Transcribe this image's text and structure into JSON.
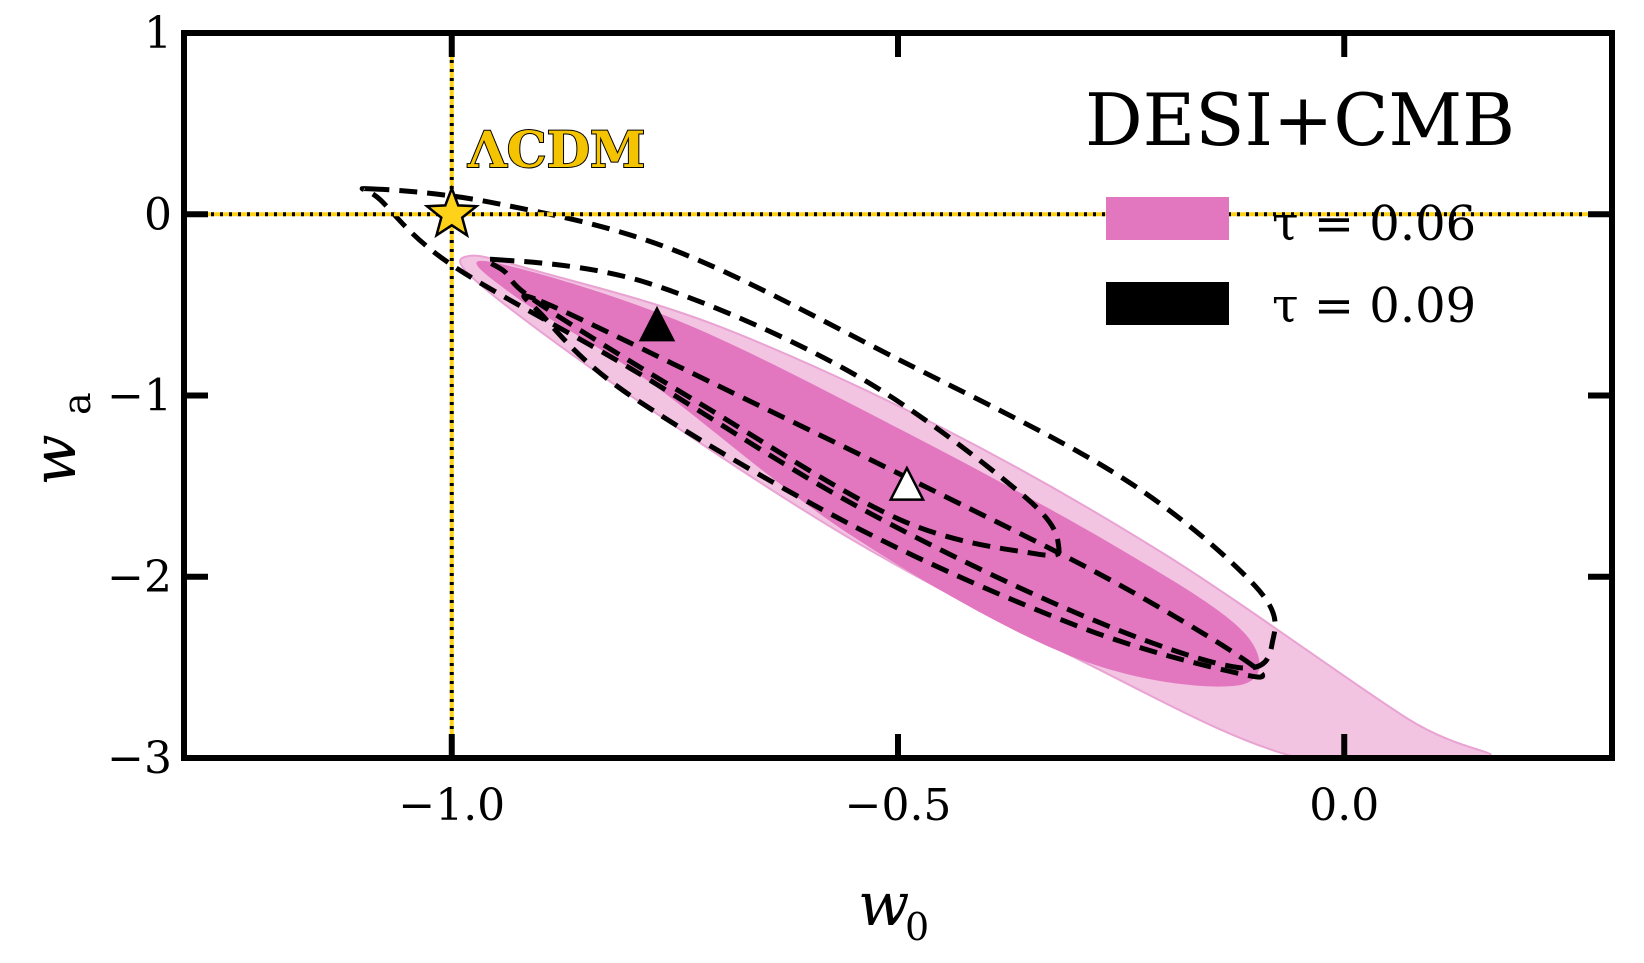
{
  "chart_data": {
    "type": "scatter",
    "title": "DESI+CMB",
    "xlabel": "w",
    "xlabel_sub": "0",
    "ylabel": "w",
    "ylabel_sub": "a",
    "xlim": [
      -1.3,
      0.3
    ],
    "ylim": [
      -3,
      1
    ],
    "xticks": [
      -1.0,
      -0.5,
      0.0
    ],
    "xtick_labels": [
      "−1.0",
      "−0.5",
      "0.0"
    ],
    "yticks": [
      1,
      0,
      -1,
      -2,
      -3
    ],
    "ytick_labels": [
      "1",
      "0",
      "−1",
      "−2",
      "−3"
    ],
    "grid": false,
    "legend_position": "top-right",
    "reference": {
      "label": "ΛCDM",
      "w0": -1.0,
      "wa": 0.0,
      "color": "#ffd21a"
    },
    "series": [
      {
        "name": "τ = 0.06",
        "color_inner": "#e277c0",
        "color_outer": "#f3c4e2",
        "best_fit": {
          "w0": -0.49,
          "wa": -1.5,
          "marker": "open-triangle"
        },
        "contour_68": [
          [
            -0.96,
            -0.26
          ],
          [
            -0.75,
            -0.58
          ],
          [
            -0.5,
            -1.18
          ],
          [
            -0.25,
            -1.85
          ],
          [
            -0.11,
            -2.32
          ],
          [
            -0.12,
            -2.6
          ],
          [
            -0.3,
            -2.45
          ],
          [
            -0.55,
            -1.78
          ],
          [
            -0.78,
            -0.92
          ],
          [
            -0.93,
            -0.45
          ]
        ],
        "contour_95": [
          [
            -0.98,
            -0.23
          ],
          [
            -0.9,
            -0.32
          ],
          [
            -0.7,
            -0.62
          ],
          [
            -0.45,
            -1.18
          ],
          [
            -0.2,
            -1.88
          ],
          [
            0.07,
            -2.78
          ],
          [
            0.16,
            -3.0
          ],
          [
            -0.05,
            -3.0
          ],
          [
            -0.3,
            -2.45
          ],
          [
            -0.55,
            -1.8
          ],
          [
            -0.8,
            -1.0
          ],
          [
            -0.97,
            -0.38
          ]
        ]
      },
      {
        "name": "τ = 0.09",
        "color": "#000000",
        "best_fit": {
          "w0": -0.77,
          "wa": -0.62,
          "marker": "filled-triangle"
        },
        "contour_68": [
          [
            -0.95,
            -0.25
          ],
          [
            -0.78,
            -0.38
          ],
          [
            -0.55,
            -0.88
          ],
          [
            -0.36,
            -1.55
          ],
          [
            -0.32,
            -1.83
          ],
          [
            -0.35,
            -1.87
          ],
          [
            -0.5,
            -1.68
          ],
          [
            -0.72,
            -1.05
          ],
          [
            -0.9,
            -0.5
          ],
          [
            -0.94,
            -0.32
          ]
        ],
        "contour_68b": [
          [
            -0.9,
            -0.48
          ],
          [
            -0.7,
            -0.95
          ],
          [
            -0.45,
            -1.55
          ],
          [
            -0.25,
            -2.05
          ],
          [
            -0.1,
            -2.5
          ],
          [
            -0.13,
            -2.52
          ],
          [
            -0.3,
            -2.27
          ],
          [
            -0.55,
            -1.72
          ],
          [
            -0.8,
            -1.0
          ],
          [
            -0.9,
            -0.55
          ]
        ],
        "contour_95": [
          [
            -1.09,
            0.14
          ],
          [
            -0.95,
            0.06
          ],
          [
            -0.75,
            -0.2
          ],
          [
            -0.5,
            -0.8
          ],
          [
            -0.25,
            -1.45
          ],
          [
            -0.1,
            -2.05
          ],
          [
            -0.08,
            -2.35
          ],
          [
            -0.12,
            -2.5
          ],
          [
            -0.3,
            -2.2
          ],
          [
            -0.55,
            -1.6
          ],
          [
            -0.8,
            -0.85
          ],
          [
            -1.0,
            -0.28
          ],
          [
            -1.08,
            0.08
          ]
        ]
      }
    ]
  }
}
